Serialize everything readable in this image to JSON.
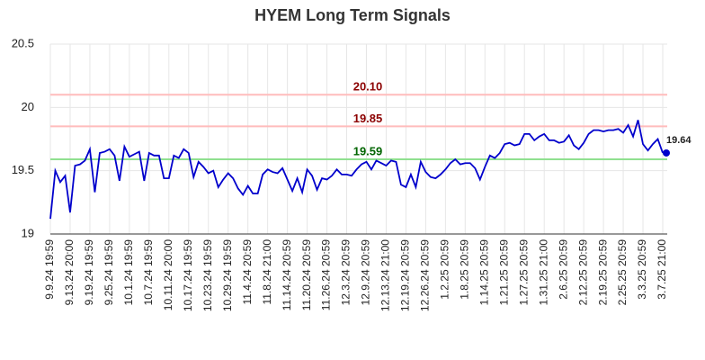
{
  "chart_data": {
    "type": "line",
    "title": "HYEM Long Term Signals",
    "categories": [
      "9.9.24 19:59",
      null,
      null,
      null,
      "9.13.24 20:00",
      null,
      null,
      null,
      "9.19.24 19:59",
      null,
      null,
      null,
      "9.25.24 19:59",
      null,
      null,
      null,
      "10.1.24 19:59",
      null,
      null,
      null,
      "10.7.24 19:59",
      null,
      null,
      null,
      "10.11.24 20:00",
      null,
      null,
      null,
      "10.17.24 19:59",
      null,
      null,
      null,
      "10.23.24 19:59",
      null,
      null,
      null,
      "10.29.24 19:59",
      null,
      null,
      null,
      "11.4.24 20:59",
      null,
      null,
      null,
      "11.8.24 21:00",
      null,
      null,
      null,
      "11.14.24 20:59",
      null,
      null,
      null,
      "11.20.24 20:59",
      null,
      null,
      null,
      "11.26.24 20:59",
      null,
      null,
      null,
      "12.3.24 20:59",
      null,
      null,
      null,
      "12.9.24 20:59",
      null,
      null,
      null,
      "12.13.24 21:00",
      null,
      null,
      null,
      "12.19.24 20:59",
      null,
      null,
      null,
      "12.26.24 20:59",
      null,
      null,
      null,
      "1.2.25 20:59",
      null,
      null,
      null,
      "1.8.25 20:59",
      null,
      null,
      null,
      "1.14.25 20:59",
      null,
      null,
      null,
      "1.21.25 20:59",
      null,
      null,
      null,
      "1.27.25 20:59",
      null,
      null,
      null,
      "1.31.25 21:00",
      null,
      null,
      null,
      "2.6.25 20:59",
      null,
      null,
      null,
      "2.12.25 20:59",
      null,
      null,
      null,
      "2.19.25 20:59",
      null,
      null,
      null,
      "2.25.25 20:59",
      null,
      null,
      null,
      "3.3.25 20:59",
      null,
      null,
      null,
      "3.7.25 21:00"
    ],
    "values": [
      19.12,
      19.5,
      19.41,
      19.46,
      19.17,
      19.54,
      19.55,
      19.58,
      19.67,
      19.33,
      19.64,
      19.65,
      19.67,
      19.62,
      19.42,
      19.69,
      19.61,
      19.63,
      19.65,
      19.42,
      19.64,
      19.62,
      19.62,
      19.44,
      19.44,
      19.62,
      19.6,
      19.67,
      19.64,
      19.45,
      19.57,
      19.53,
      19.48,
      19.5,
      19.37,
      19.43,
      19.48,
      19.44,
      19.36,
      19.31,
      19.38,
      19.32,
      19.32,
      19.47,
      19.51,
      19.49,
      19.48,
      19.52,
      19.43,
      19.34,
      19.44,
      19.33,
      19.51,
      19.46,
      19.35,
      19.44,
      19.43,
      19.46,
      19.51,
      19.47,
      19.47,
      19.46,
      19.51,
      19.55,
      19.57,
      19.51,
      19.58,
      19.56,
      19.54,
      19.58,
      19.57,
      19.39,
      19.37,
      19.47,
      19.37,
      19.57,
      19.49,
      19.45,
      19.44,
      19.47,
      19.51,
      19.56,
      19.59,
      19.55,
      19.56,
      19.56,
      19.52,
      19.43,
      19.53,
      19.62,
      19.6,
      19.64,
      19.71,
      19.72,
      19.7,
      19.71,
      19.79,
      19.79,
      19.74,
      19.77,
      19.79,
      19.74,
      19.74,
      19.72,
      19.73,
      19.78,
      19.7,
      19.67,
      19.72,
      19.79,
      19.82,
      19.82,
      19.81,
      19.82,
      19.82,
      19.83,
      19.8,
      19.86,
      19.77,
      19.9,
      19.71,
      19.66,
      19.71,
      19.75,
      19.64
    ],
    "color": "#0000cc",
    "ylim": [
      19,
      20.5
    ],
    "yticks": [
      19,
      19.5,
      20,
      20.5
    ],
    "grid": true,
    "reference_lines": [
      {
        "value": 20.1,
        "label": "20.10",
        "color": "#ffbcbc",
        "label_color": "#8b0000"
      },
      {
        "value": 19.85,
        "label": "19.85",
        "color": "#ffbcbc",
        "label_color": "#8b0000"
      },
      {
        "value": 19.59,
        "label": "19.59",
        "color": "#90e090",
        "label_color": "#006400"
      }
    ]
  }
}
